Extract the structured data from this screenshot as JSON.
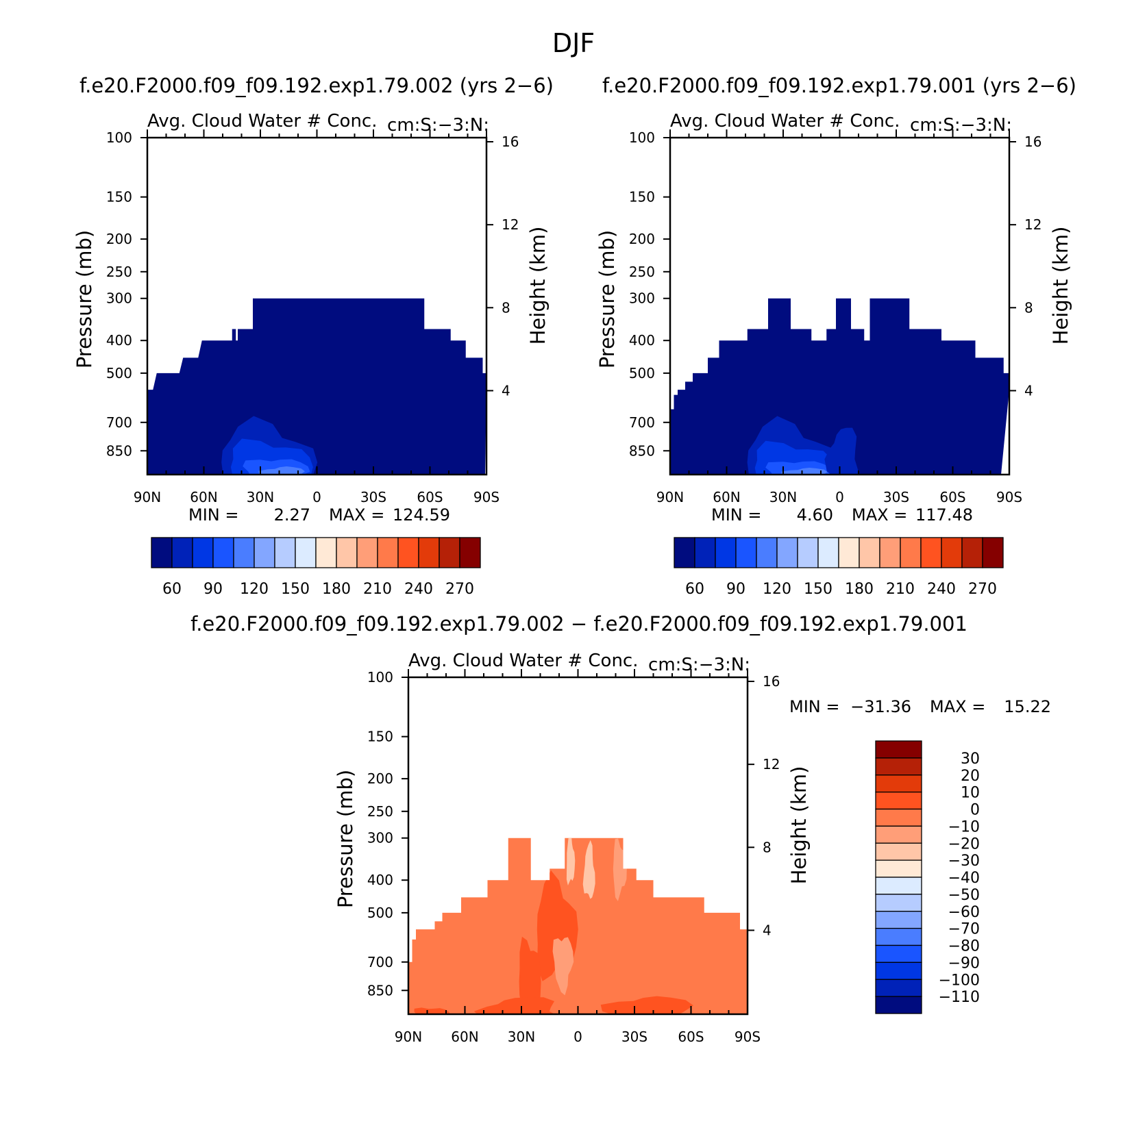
{
  "figure": {
    "title": "DJF"
  },
  "chart_data": [
    {
      "type": "heatmap",
      "case_title": "f.e20.F2000.f09_f09.192.exp1.79.002 (yrs 2−6)",
      "left_title": "Avg. Cloud Water # Conc.",
      "right_title": "cm:S:−3:N:",
      "ylabel": "Pressure (mb)",
      "ylabel_right": "Height (km)",
      "pressure_ticks": [
        "100",
        "150",
        "200",
        "250",
        "300",
        "400",
        "500",
        "700",
        "850"
      ],
      "height_ticks": [
        "16",
        "12",
        "8",
        "4"
      ],
      "x_ticks": [
        "90N",
        "60N",
        "30N",
        "0",
        "30S",
        "60S",
        "90S"
      ],
      "ylim": [
        100,
        1000
      ],
      "xlim": [
        "90N",
        "90S"
      ],
      "min_label": "MIN =",
      "min_value": "2.27",
      "max_label": "MAX =",
      "max_value": "124.59",
      "colorbar_labels": [
        "60",
        "90",
        "120",
        "150",
        "180",
        "210",
        "240",
        "270"
      ],
      "colors": [
        "#000c7f",
        "#0022b8",
        "#0037e4",
        "#1a55ff",
        "#4a7dff",
        "#83a6ff",
        "#b6ccff",
        "#dcebff",
        "#ffe9d6",
        "#ffc6a8",
        "#ff9e78",
        "#ff7a4a",
        "#ff5320",
        "#e33b0a",
        "#b52107",
        "#850000"
      ]
    },
    {
      "type": "heatmap",
      "case_title": "f.e20.F2000.f09_f09.192.exp1.79.001 (yrs 2−6)",
      "left_title": "Avg. Cloud Water # Conc.",
      "right_title": "cm:S:−3:N:",
      "ylabel": "Pressure (mb)",
      "ylabel_right": "Height (km)",
      "pressure_ticks": [
        "100",
        "150",
        "200",
        "250",
        "300",
        "400",
        "500",
        "700",
        "850"
      ],
      "height_ticks": [
        "16",
        "12",
        "8",
        "4"
      ],
      "x_ticks": [
        "90N",
        "60N",
        "30N",
        "0",
        "30S",
        "60S",
        "90S"
      ],
      "ylim": [
        100,
        1000
      ],
      "xlim": [
        "90N",
        "90S"
      ],
      "min_label": "MIN =",
      "min_value": "4.60",
      "max_label": "MAX =",
      "max_value": "117.48",
      "colorbar_labels": [
        "60",
        "90",
        "120",
        "150",
        "180",
        "210",
        "240",
        "270"
      ],
      "colors": [
        "#000c7f",
        "#0022b8",
        "#0037e4",
        "#1a55ff",
        "#4a7dff",
        "#83a6ff",
        "#b6ccff",
        "#dcebff",
        "#ffe9d6",
        "#ffc6a8",
        "#ff9e78",
        "#ff7a4a",
        "#ff5320",
        "#e33b0a",
        "#b52107",
        "#850000"
      ]
    },
    {
      "type": "heatmap",
      "case_title": "f.e20.F2000.f09_f09.192.exp1.79.002 − f.e20.F2000.f09_f09.192.exp1.79.001",
      "left_title": "Avg. Cloud Water # Conc.",
      "right_title": "cm:S:−3:N:",
      "ylabel": "Pressure (mb)",
      "ylabel_right": "Height (km)",
      "pressure_ticks": [
        "100",
        "150",
        "200",
        "250",
        "300",
        "400",
        "500",
        "700",
        "850"
      ],
      "height_ticks": [
        "16",
        "12",
        "8",
        "4"
      ],
      "x_ticks": [
        "90N",
        "60N",
        "30N",
        "0",
        "30S",
        "60S",
        "90S"
      ],
      "ylim": [
        100,
        1000
      ],
      "xlim": [
        "90N",
        "90S"
      ],
      "min_label": "MIN =",
      "min_value": "−31.36",
      "max_label": "MAX =",
      "max_value": "15.22",
      "colorbar_labels": [
        "30",
        "20",
        "10",
        "0",
        "−10",
        "−20",
        "−30",
        "−40",
        "−50",
        "−60",
        "−70",
        "−80",
        "−90",
        "−100",
        "−110"
      ],
      "colors": [
        "#850000",
        "#b52107",
        "#e33b0a",
        "#ff5320",
        "#ff7a4a",
        "#ff9e78",
        "#ffc6a8",
        "#ffe9d6",
        "#dcebff",
        "#b6ccff",
        "#83a6ff",
        "#4a7dff",
        "#1a55ff",
        "#0037e4",
        "#0022b8",
        "#000c7f"
      ]
    }
  ]
}
